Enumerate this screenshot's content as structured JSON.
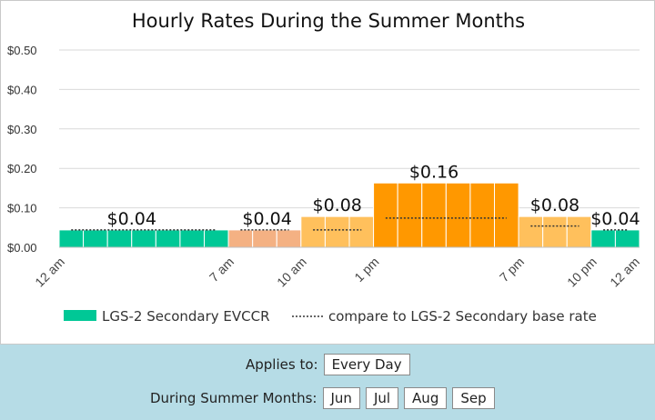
{
  "chart_data": {
    "type": "bar",
    "title": "Hourly Rates During the Summer Months",
    "y_ticks": [
      "$0.50",
      "$0.40",
      "$0.30",
      "$0.20",
      "$0.10",
      "$0.00"
    ],
    "ylim": [
      0,
      0.5
    ],
    "x_ticks": [
      {
        "hour": 0,
        "label": "12 am"
      },
      {
        "hour": 7,
        "label": "7 am"
      },
      {
        "hour": 10,
        "label": "10 am"
      },
      {
        "hour": 13,
        "label": "1 pm"
      },
      {
        "hour": 19,
        "label": "7 pm"
      },
      {
        "hour": 22,
        "label": "10 pm"
      },
      {
        "hour": 24,
        "label": "12 am"
      }
    ],
    "hours": [
      0,
      1,
      2,
      3,
      4,
      5,
      6,
      7,
      8,
      9,
      10,
      11,
      12,
      13,
      14,
      15,
      16,
      17,
      18,
      19,
      20,
      21,
      22,
      23
    ],
    "values": [
      0.044,
      0.044,
      0.044,
      0.044,
      0.044,
      0.044,
      0.044,
      0.044,
      0.044,
      0.044,
      0.078,
      0.078,
      0.078,
      0.163,
      0.163,
      0.163,
      0.163,
      0.163,
      0.163,
      0.078,
      0.078,
      0.078,
      0.044,
      0.044
    ],
    "bar_colors": [
      "#00c896",
      "#00c896",
      "#00c896",
      "#00c896",
      "#00c896",
      "#00c896",
      "#00c896",
      "#f4b183",
      "#f4b183",
      "#f4b183",
      "#ffc05c",
      "#ffc05c",
      "#ffc05c",
      "#ff9800",
      "#ff9800",
      "#ff9800",
      "#ff9800",
      "#ff9800",
      "#ff9800",
      "#ffc05c",
      "#ffc05c",
      "#ffc05c",
      "#00c896",
      "#00c896"
    ],
    "base_rate_segments": [
      {
        "from": 0,
        "to": 7,
        "value": 0.044
      },
      {
        "from": 7,
        "to": 10,
        "value": 0.044
      },
      {
        "from": 10,
        "to": 13,
        "value": 0.044
      },
      {
        "from": 13,
        "to": 19,
        "value": 0.074
      },
      {
        "from": 19,
        "to": 22,
        "value": 0.054
      },
      {
        "from": 22,
        "to": 24,
        "value": 0.044
      }
    ],
    "annotations": [
      {
        "hour": 3,
        "value": 0.044,
        "text": "$0.04"
      },
      {
        "hour": 8.6,
        "value": 0.044,
        "text": "$0.04"
      },
      {
        "hour": 11.5,
        "value": 0.078,
        "text": "$0.08"
      },
      {
        "hour": 15.5,
        "value": 0.163,
        "text": "$0.16"
      },
      {
        "hour": 20.5,
        "value": 0.078,
        "text": "$0.08"
      },
      {
        "hour": 23,
        "value": 0.044,
        "text": "$0.04"
      }
    ],
    "legend": [
      {
        "name": "LGS-2 Secondary EVCCR",
        "color": "#00c896",
        "style": "swatch"
      },
      {
        "name": "compare to LGS-2 Secondary base rate",
        "color": "#333333",
        "style": "dotted"
      }
    ],
    "grid": true
  },
  "controls": {
    "applies_label": "Applies to:",
    "applies_value": "Every Day",
    "months_label": "During Summer Months:",
    "months": [
      "Jun",
      "Jul",
      "Aug",
      "Sep"
    ]
  }
}
